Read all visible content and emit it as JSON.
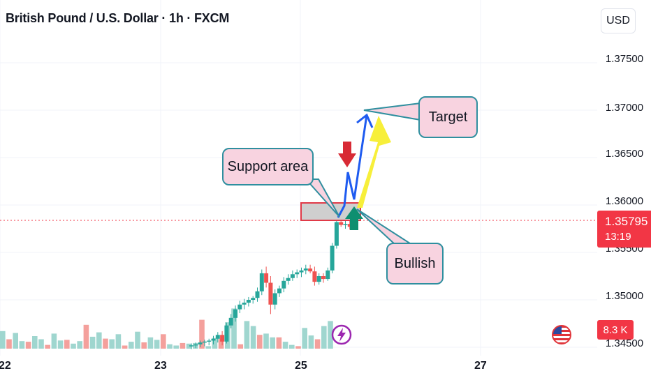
{
  "header": {
    "title": "British Pound / U.S. Dollar · 1h · FXCM",
    "currency_button": "USD"
  },
  "price_scale": {
    "labels": [
      "1.37500",
      "1.37000",
      "1.36500",
      "1.36000",
      "1.35500",
      "1.35000",
      "1.34500"
    ],
    "last_price": "1.35795",
    "countdown": "13:19",
    "volume_label": "8.3 K"
  },
  "time_scale": {
    "labels": [
      "22",
      "23",
      "25",
      "27"
    ]
  },
  "annotations": {
    "support": "Support area",
    "target": "Target",
    "bullish": "Bullish"
  },
  "colors": {
    "up": "#26a69a",
    "down": "#ef5350",
    "volume_up": "#9fd6cf",
    "volume_down": "#f4a09c",
    "callout_fill": "#f8d3e0",
    "callout_border": "#2f8f9f",
    "path": "#1e5bf0",
    "yellow_arrow": "#f7ef3a",
    "support_box_border": "#e03a48"
  },
  "chart_data": {
    "type": "candlestick",
    "symbol": "British Pound / U.S. Dollar",
    "interval": "1h",
    "source": "FXCM",
    "y_axis": {
      "min": 1.3445,
      "max": 1.3775,
      "ticks": [
        1.345,
        1.35,
        1.355,
        1.36,
        1.365,
        1.37,
        1.375
      ]
    },
    "x_ticks": [
      "22",
      "23",
      "25",
      "27"
    ],
    "last_price": 1.35795,
    "candles": [
      {
        "i": 30.0,
        "o": 1.3451,
        "h": 1.3454,
        "l": 1.3448,
        "c": 1.3452
      },
      {
        "i": 30.7,
        "o": 1.3452,
        "h": 1.3455,
        "l": 1.3449,
        "c": 1.3453
      },
      {
        "i": 31.4,
        "o": 1.3453,
        "h": 1.3457,
        "l": 1.345,
        "c": 1.3455
      },
      {
        "i": 32.1,
        "o": 1.3455,
        "h": 1.3458,
        "l": 1.3451,
        "c": 1.3456
      },
      {
        "i": 32.8,
        "o": 1.3456,
        "h": 1.3459,
        "l": 1.3452,
        "c": 1.3457
      },
      {
        "i": 33.5,
        "o": 1.3457,
        "h": 1.3462,
        "l": 1.3453,
        "c": 1.3459
      },
      {
        "i": 34.2,
        "o": 1.3459,
        "h": 1.3466,
        "l": 1.3455,
        "c": 1.3463
      },
      {
        "i": 34.9,
        "o": 1.3463,
        "h": 1.3467,
        "l": 1.3452,
        "c": 1.3456
      },
      {
        "i": 35.6,
        "o": 1.3456,
        "h": 1.3476,
        "l": 1.3454,
        "c": 1.3473
      },
      {
        "i": 36.3,
        "o": 1.3473,
        "h": 1.3485,
        "l": 1.347,
        "c": 1.3481
      },
      {
        "i": 37.0,
        "o": 1.3481,
        "h": 1.3494,
        "l": 1.3477,
        "c": 1.349
      },
      {
        "i": 37.7,
        "o": 1.349,
        "h": 1.3499,
        "l": 1.3486,
        "c": 1.3495
      },
      {
        "i": 38.4,
        "o": 1.3495,
        "h": 1.3501,
        "l": 1.349,
        "c": 1.3497
      },
      {
        "i": 39.1,
        "o": 1.3497,
        "h": 1.3503,
        "l": 1.3493,
        "c": 1.35
      },
      {
        "i": 39.8,
        "o": 1.35,
        "h": 1.3504,
        "l": 1.3496,
        "c": 1.3502
      },
      {
        "i": 40.5,
        "o": 1.3502,
        "h": 1.3513,
        "l": 1.3498,
        "c": 1.3509
      },
      {
        "i": 41.2,
        "o": 1.3509,
        "h": 1.3532,
        "l": 1.3505,
        "c": 1.3528
      },
      {
        "i": 41.9,
        "o": 1.3528,
        "h": 1.3535,
        "l": 1.3513,
        "c": 1.3518
      },
      {
        "i": 42.6,
        "o": 1.3518,
        "h": 1.3525,
        "l": 1.3485,
        "c": 1.3495
      },
      {
        "i": 43.3,
        "o": 1.3495,
        "h": 1.3511,
        "l": 1.349,
        "c": 1.3507
      },
      {
        "i": 44.0,
        "o": 1.3507,
        "h": 1.3515,
        "l": 1.3503,
        "c": 1.3512
      },
      {
        "i": 44.7,
        "o": 1.3512,
        "h": 1.3524,
        "l": 1.3508,
        "c": 1.352
      },
      {
        "i": 45.4,
        "o": 1.352,
        "h": 1.3527,
        "l": 1.3516,
        "c": 1.3523
      },
      {
        "i": 46.1,
        "o": 1.3523,
        "h": 1.3531,
        "l": 1.352,
        "c": 1.3527
      },
      {
        "i": 46.8,
        "o": 1.3527,
        "h": 1.3532,
        "l": 1.3523,
        "c": 1.3529
      },
      {
        "i": 47.5,
        "o": 1.3529,
        "h": 1.3534,
        "l": 1.3524,
        "c": 1.3531
      },
      {
        "i": 48.2,
        "o": 1.3531,
        "h": 1.3537,
        "l": 1.3527,
        "c": 1.3533
      },
      {
        "i": 48.9,
        "o": 1.3533,
        "h": 1.3537,
        "l": 1.3528,
        "c": 1.353
      },
      {
        "i": 49.6,
        "o": 1.353,
        "h": 1.3535,
        "l": 1.3515,
        "c": 1.3519
      },
      {
        "i": 50.3,
        "o": 1.3519,
        "h": 1.3528,
        "l": 1.3516,
        "c": 1.3525
      },
      {
        "i": 51.0,
        "o": 1.3525,
        "h": 1.3528,
        "l": 1.3518,
        "c": 1.3522
      },
      {
        "i": 51.7,
        "o": 1.3522,
        "h": 1.3534,
        "l": 1.352,
        "c": 1.3531
      },
      {
        "i": 52.4,
        "o": 1.3531,
        "h": 1.356,
        "l": 1.3528,
        "c": 1.3557
      },
      {
        "i": 53.1,
        "o": 1.3557,
        "h": 1.3585,
        "l": 1.3554,
        "c": 1.3582
      },
      {
        "i": 53.8,
        "o": 1.3582,
        "h": 1.3586,
        "l": 1.3577,
        "c": 1.3579
      },
      {
        "i": 54.5,
        "o": 1.3579,
        "h": 1.3585,
        "l": 1.3575,
        "c": 1.358
      },
      {
        "i": 55.2,
        "o": 1.358,
        "h": 1.3584,
        "l": 1.3574,
        "c": 1.3577
      },
      {
        "i": 55.8,
        "o": 1.3577,
        "h": 1.3584,
        "l": 1.3574,
        "c": 1.3579
      }
    ],
    "volume": {
      "up": [
        2.8,
        1.8,
        2.5,
        1.2,
        1.6,
        2.0,
        1.5,
        1.0,
        2.4,
        1.3,
        0.6,
        0.8,
        1.2,
        0.5,
        1.9,
        2.6,
        2.8,
        1.5,
        2.3,
        1.7,
        1.1,
        2.7,
        1.9,
        1.8,
        1.4,
        1.0,
        0.7,
        0.5,
        0.6,
        0.8,
        0.9,
        1.2,
        0.4,
        1.7,
        3.0,
        4.2,
        6.4,
        5.6,
        4.4,
        3.6,
        3.0,
        2.4,
        1.8,
        1.4,
        1.1,
        0.6,
        0.7,
        3.3,
        2.1,
        2.8,
        3.6,
        4.4
      ],
      "down": [
        2.2,
        1.5,
        3.3,
        1.4,
        1.1,
        1.7,
        0.8,
        0.6,
        4.1,
        2.6,
        1.4,
        0.5,
        0.9,
        3.8,
        2.9,
        3.1,
        1.6,
        1.2,
        0.8,
        0.5,
        0.9,
        2.4,
        1.0,
        3.7,
        4.9,
        2.3,
        1.5,
        0.7,
        0.9,
        1.5,
        0.8,
        4.6,
        3.0,
        1.3,
        1.6,
        2.0,
        0.8,
        0.7,
        1.4,
        1.6,
        2.2,
        1.1,
        0.9,
        1.8,
        1.3,
        0.8,
        0.4,
        3.2,
        2.8,
        1.5,
        2.7,
        3.6
      ]
    },
    "drawings": {
      "support_area": {
        "from": 1.35795,
        "to": 1.35985,
        "label": "Support area"
      },
      "target_price": 1.3695,
      "projected_path": [
        1.3582,
        1.3636,
        1.3602,
        1.3695
      ]
    }
  }
}
